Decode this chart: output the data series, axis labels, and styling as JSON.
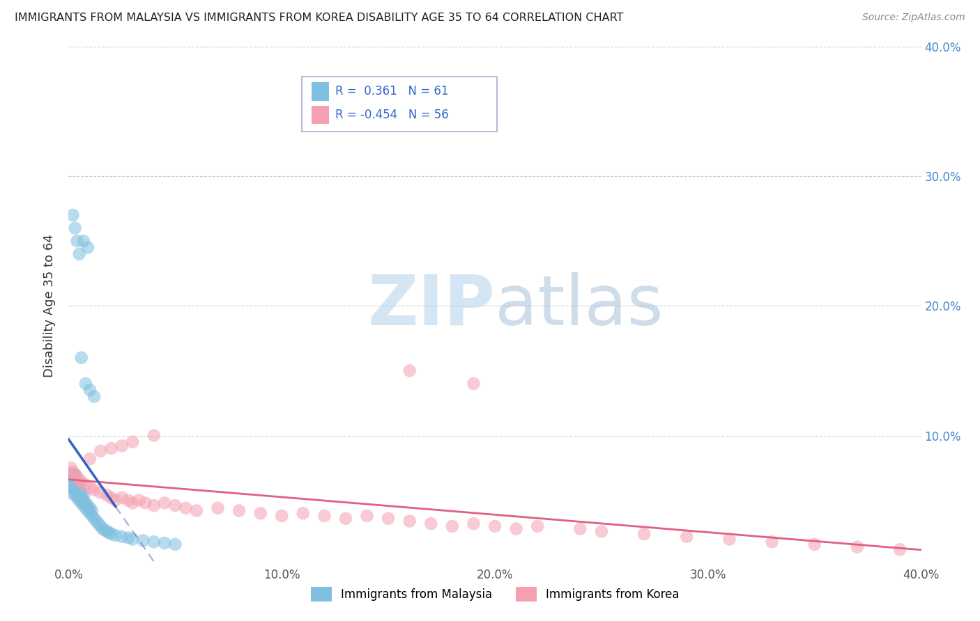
{
  "title": "IMMIGRANTS FROM MALAYSIA VS IMMIGRANTS FROM KOREA DISABILITY AGE 35 TO 64 CORRELATION CHART",
  "source": "Source: ZipAtlas.com",
  "ylabel": "Disability Age 35 to 64",
  "xlim": [
    0.0,
    0.4
  ],
  "ylim": [
    0.0,
    0.4
  ],
  "xtick_vals": [
    0.0,
    0.1,
    0.2,
    0.3,
    0.4
  ],
  "ytick_vals": [
    0.1,
    0.2,
    0.3,
    0.4
  ],
  "malaysia_color": "#7fbfdf",
  "korea_color": "#f4a0b0",
  "malaysia_R": 0.361,
  "malaysia_N": 61,
  "korea_R": -0.454,
  "korea_N": 56,
  "malaysia_line_color": "#3060c0",
  "korea_line_color": "#e06080",
  "watermark_color": "#ccddf0",
  "legend_label_malaysia": "Immigrants from Malaysia",
  "legend_label_korea": "Immigrants from Korea",
  "malaysia_x": [
    0.001,
    0.001,
    0.001,
    0.002,
    0.002,
    0.002,
    0.002,
    0.003,
    0.003,
    0.003,
    0.003,
    0.003,
    0.004,
    0.004,
    0.004,
    0.004,
    0.005,
    0.005,
    0.005,
    0.005,
    0.006,
    0.006,
    0.006,
    0.007,
    0.007,
    0.007,
    0.008,
    0.008,
    0.009,
    0.009,
    0.01,
    0.01,
    0.011,
    0.011,
    0.012,
    0.013,
    0.014,
    0.015,
    0.016,
    0.017,
    0.018,
    0.019,
    0.02,
    0.022,
    0.025,
    0.028,
    0.03,
    0.035,
    0.04,
    0.045,
    0.05,
    0.006,
    0.008,
    0.01,
    0.012,
    0.002,
    0.003,
    0.004,
    0.005,
    0.007,
    0.009
  ],
  "malaysia_y": [
    0.06,
    0.065,
    0.07,
    0.055,
    0.06,
    0.065,
    0.07,
    0.055,
    0.058,
    0.062,
    0.066,
    0.07,
    0.052,
    0.056,
    0.06,
    0.064,
    0.05,
    0.054,
    0.058,
    0.062,
    0.048,
    0.052,
    0.056,
    0.046,
    0.05,
    0.054,
    0.044,
    0.048,
    0.042,
    0.046,
    0.04,
    0.044,
    0.038,
    0.042,
    0.036,
    0.034,
    0.032,
    0.03,
    0.028,
    0.027,
    0.026,
    0.025,
    0.024,
    0.023,
    0.022,
    0.021,
    0.02,
    0.019,
    0.018,
    0.017,
    0.016,
    0.16,
    0.14,
    0.135,
    0.13,
    0.27,
    0.26,
    0.25,
    0.24,
    0.25,
    0.245
  ],
  "korea_x": [
    0.001,
    0.002,
    0.003,
    0.004,
    0.005,
    0.006,
    0.008,
    0.01,
    0.012,
    0.015,
    0.018,
    0.02,
    0.022,
    0.025,
    0.028,
    0.03,
    0.033,
    0.036,
    0.04,
    0.045,
    0.05,
    0.055,
    0.06,
    0.07,
    0.08,
    0.09,
    0.1,
    0.11,
    0.12,
    0.13,
    0.14,
    0.15,
    0.16,
    0.17,
    0.18,
    0.19,
    0.2,
    0.21,
    0.22,
    0.24,
    0.25,
    0.27,
    0.29,
    0.31,
    0.33,
    0.35,
    0.37,
    0.39,
    0.01,
    0.015,
    0.02,
    0.025,
    0.03,
    0.04,
    0.16,
    0.19
  ],
  "korea_y": [
    0.075,
    0.072,
    0.07,
    0.068,
    0.066,
    0.064,
    0.062,
    0.06,
    0.058,
    0.056,
    0.054,
    0.052,
    0.05,
    0.052,
    0.05,
    0.048,
    0.05,
    0.048,
    0.046,
    0.048,
    0.046,
    0.044,
    0.042,
    0.044,
    0.042,
    0.04,
    0.038,
    0.04,
    0.038,
    0.036,
    0.038,
    0.036,
    0.034,
    0.032,
    0.03,
    0.032,
    0.03,
    0.028,
    0.03,
    0.028,
    0.026,
    0.024,
    0.022,
    0.02,
    0.018,
    0.016,
    0.014,
    0.012,
    0.082,
    0.088,
    0.09,
    0.092,
    0.095,
    0.1,
    0.15,
    0.14
  ]
}
